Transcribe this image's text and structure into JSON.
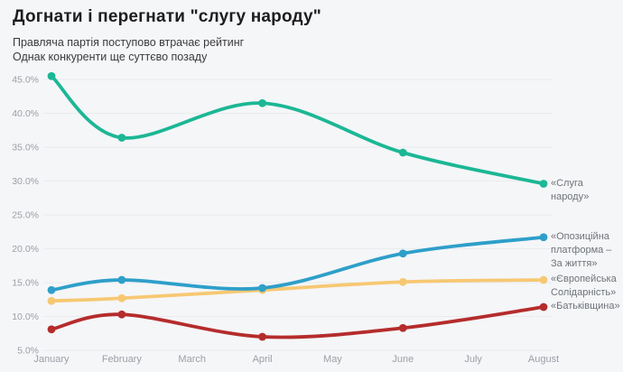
{
  "title": "Догнати і перегнати \"слугу народу\"",
  "subtitle_line1": "Правляча партія поступово втрачає рейтинг",
  "subtitle_line2": "Однак конкуренти ще суттєво позаду",
  "colors": {
    "background": "#f5f6f8",
    "gridline": "#e9ebee",
    "axis_text": "#9ba0a6",
    "legend_text": "#6e7378",
    "title_text": "#1d1d1f",
    "subtitle_text": "#3b3b3d",
    "servant_of_people": "#1cb795",
    "opposition_platform": "#2e9fc9",
    "european_solidarity": "#f7c873",
    "batkivshchyna": "#b52c2c"
  },
  "chart_data": {
    "type": "line",
    "title": "Догнати і перегнати \"слугу народу\"",
    "subtitle": "Правляча партія поступово втрачає рейтинг. Однак конкуренти ще суттєво позаду",
    "xlabel": "",
    "ylabel": "",
    "categories": [
      "January",
      "February",
      "March",
      "April",
      "May",
      "June",
      "July",
      "August"
    ],
    "yticks": [
      45,
      40,
      35,
      30,
      25,
      20,
      15,
      10,
      5
    ],
    "ytick_labels": [
      "45.0%",
      "40.0%",
      "35.0%",
      "30.0%",
      "25.0%",
      "20.0%",
      "15.0%",
      "10.0%",
      "5.0%"
    ],
    "ylim": [
      5,
      47
    ],
    "grid": "horizontal",
    "legend_position": "right-of-line-ends",
    "series": [
      {
        "name": "«Слуга народу»",
        "label_lines": [
          "«Слуга",
          "народу»"
        ],
        "color": "#1cb795",
        "values": [
          45.5,
          36.4,
          null,
          41.5,
          null,
          34.2,
          null,
          29.6
        ]
      },
      {
        "name": "«Опозиційна платформа – За життя»",
        "label_lines": [
          "«Опозиційна",
          "платформа –",
          "За життя»"
        ],
        "color": "#2e9fc9",
        "values": [
          13.9,
          15.4,
          null,
          14.2,
          null,
          19.3,
          null,
          21.7
        ]
      },
      {
        "name": "«Європейська Солідарність»",
        "label_lines": [
          "«Європейська",
          "Солідарність»"
        ],
        "color": "#f7c873",
        "values": [
          12.3,
          12.7,
          null,
          13.9,
          null,
          15.1,
          null,
          15.4
        ]
      },
      {
        "name": "«Батьківщина»",
        "label_lines": [
          "«Батьківщина»"
        ],
        "color": "#b52c2c",
        "values": [
          8.1,
          10.3,
          null,
          7.0,
          null,
          8.3,
          null,
          11.4
        ]
      }
    ]
  }
}
